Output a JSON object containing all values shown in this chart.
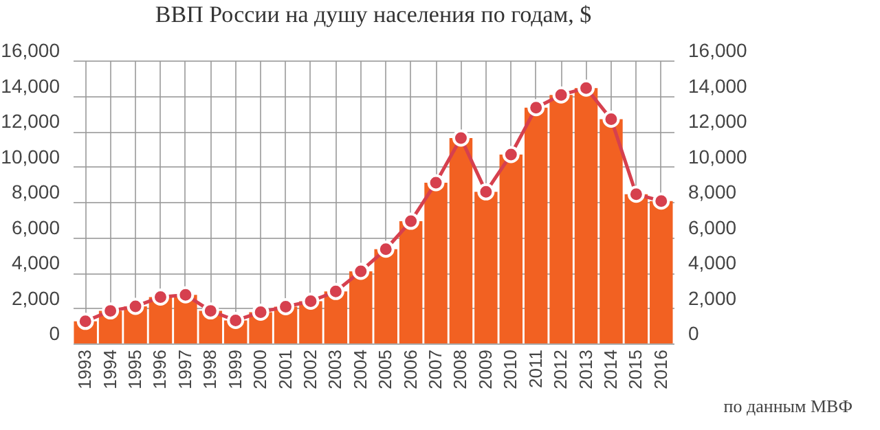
{
  "chart_data": {
    "type": "bar",
    "title": "ВВП России на душу населения по годам, $",
    "categories": [
      "1993",
      "1994",
      "1995",
      "1996",
      "1997",
      "1998",
      "1999",
      "2000",
      "2001",
      "2002",
      "2003",
      "2004",
      "2005",
      "2006",
      "2007",
      "2008",
      "2009",
      "2010",
      "2011",
      "2012",
      "2013",
      "2014",
      "2015",
      "2016"
    ],
    "series": [
      {
        "color": "#f26122",
        "values": [
          1250,
          1840,
          2100,
          2620,
          2750,
          1840,
          1300,
          1770,
          2080,
          2390,
          2940,
          4080,
          5330,
          6910,
          9090,
          11610,
          8570,
          10680,
          13330,
          14050,
          14440,
          12680,
          8440,
          8050
        ]
      },
      {
        "type": "line",
        "axis": "y2",
        "color": "#d6404e",
        "values": [
          1250,
          1840,
          2100,
          2620,
          2750,
          1840,
          1300,
          1770,
          2080,
          2390,
          2940,
          4080,
          5330,
          6910,
          9090,
          11610,
          8570,
          10680,
          13330,
          14050,
          14440,
          12680,
          8440,
          8050
        ]
      }
    ],
    "ylim": [
      0,
      16000
    ],
    "yticks": [
      0,
      {
        "value": 2000,
        "label": "2,000"
      },
      {
        "value": 4000,
        "label": "4,000"
      },
      {
        "value": 6000,
        "label": "6,000"
      },
      {
        "value": 8000,
        "label": "8,000"
      },
      {
        "value": 10000,
        "label": "10,000"
      },
      {
        "value": 12000,
        "label": "12,000"
      },
      {
        "value": 14000,
        "label": "14,000"
      },
      {
        "value": 16000,
        "label": "16,000"
      }
    ],
    "y2lim": [
      0,
      16000
    ],
    "y2ticks": [
      0,
      {
        "value": 2000,
        "label": "2,000"
      },
      {
        "value": 4000,
        "label": "4,000"
      },
      {
        "value": 6000,
        "label": "6,000"
      },
      {
        "value": 8000,
        "label": "8,000"
      },
      {
        "value": 10000,
        "label": "10,000"
      },
      {
        "value": 12000,
        "label": "12,000"
      },
      {
        "value": 14000,
        "label": "14,000"
      },
      {
        "value": 16000,
        "label": "16,000"
      }
    ],
    "grid": true,
    "marker": "circle",
    "line_style": "solid",
    "annotations": [
      "по данным МВФ"
    ]
  }
}
